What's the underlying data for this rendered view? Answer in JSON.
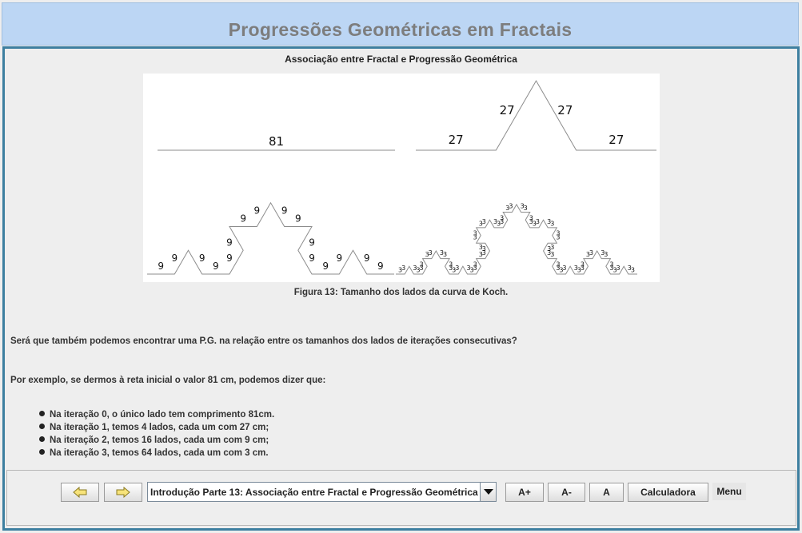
{
  "app": {
    "title": "Progressões Geométricas em Fractais"
  },
  "section": {
    "title": "Associação entre Fractal e Progressão Geométrica"
  },
  "figure": {
    "caption": "Figura 13: Tamanho dos lados da curva de Koch.",
    "iteration0_label": "81",
    "iteration1_label": "27",
    "iteration2_label": "9",
    "iteration3_label": "3"
  },
  "text": {
    "paragraph1": "Será que também podemos encontrar uma P.G. na relação entre os tamanhos dos lados de iterações consecutivas?",
    "paragraph2": "Por exemplo, se dermos à reta inicial o valor 81 cm, podemos dizer que:",
    "bullets": [
      "Na iteração 0, o único lado tem comprimento 81cm.",
      "Na iteração 1, temos 4 lados, cada um com 27 cm;",
      "Na iteração 2, temos 16 lados, cada um com 9 cm;",
      "Na iteração 3, temos 64 lados, cada um com 3 cm."
    ]
  },
  "toolbar": {
    "prev_icon": "left-arrow-icon",
    "next_icon": "right-arrow-icon",
    "chapter_selected": "Introdução Parte 13: Associação entre Fractal e Progressão Geométrica",
    "font_increase_label": "A+",
    "font_decrease_label": "A-",
    "font_reset_label": "A",
    "calculator_label": "Calculadora",
    "menu_label": "Menu"
  },
  "colors": {
    "title_bar": "#bcd6f4",
    "frame_border": "#3d7fa0",
    "arrow_fill": "#f7e37a"
  }
}
